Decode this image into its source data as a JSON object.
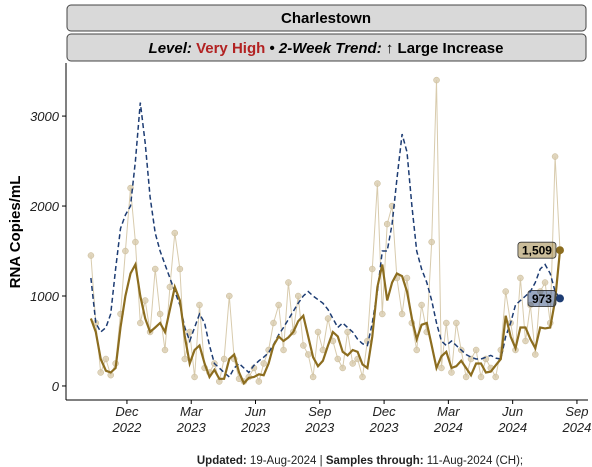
{
  "chart_data": {
    "type": "line",
    "title": "Charlestown",
    "subtitle": {
      "level_label": "Level:",
      "level": "Very High",
      "level_color": "#b22222",
      "separator": "•",
      "trend_label": "2-Week Trend:",
      "trend": "↑ Large Increase"
    },
    "ylabel": "RNA Copies/mL",
    "footer": {
      "updated_label": "Updated:",
      "updated": "19-Aug-2024",
      "divider": "|",
      "samples_label": "Samples through:",
      "samples": "11-Aug-2024 (CH);"
    },
    "xlim": [
      2022.68,
      2024.71
    ],
    "ylim": [
      -156,
      3590
    ],
    "xticks": [
      {
        "value": 2022.917,
        "label": "Dec\n2022"
      },
      {
        "value": 2023.167,
        "label": "Mar\n2023"
      },
      {
        "value": 2023.417,
        "label": "Jun\n2023"
      },
      {
        "value": 2023.667,
        "label": "Sep\n2023"
      },
      {
        "value": 2023.917,
        "label": "Dec\n2023"
      },
      {
        "value": 2024.167,
        "label": "Mar\n2024"
      },
      {
        "value": 2024.417,
        "label": "Jun\n2024"
      },
      {
        "value": 2024.667,
        "label": "Sep\n2024"
      }
    ],
    "yticks": [
      0,
      1000,
      2000,
      3000
    ],
    "grid": false,
    "x": [
      2022.777,
      2022.796,
      2022.815,
      2022.835,
      2022.854,
      2022.873,
      2022.892,
      2022.911,
      2022.931,
      2022.95,
      2022.969,
      2022.988,
      2023.007,
      2023.027,
      2023.046,
      2023.065,
      2023.084,
      2023.103,
      2023.123,
      2023.142,
      2023.161,
      2023.18,
      2023.199,
      2023.219,
      2023.238,
      2023.257,
      2023.276,
      2023.295,
      2023.315,
      2023.334,
      2023.353,
      2023.372,
      2023.391,
      2023.411,
      2023.43,
      2023.449,
      2023.468,
      2023.487,
      2023.507,
      2023.526,
      2023.545,
      2023.564,
      2023.583,
      2023.603,
      2023.622,
      2023.641,
      2023.66,
      2023.679,
      2023.699,
      2023.718,
      2023.737,
      2023.756,
      2023.775,
      2023.795,
      2023.814,
      2023.833,
      2023.852,
      2023.871,
      2023.891,
      2023.91,
      2023.929,
      2023.948,
      2023.967,
      2023.987,
      2024.006,
      2024.025,
      2024.044,
      2024.063,
      2024.083,
      2024.102,
      2024.121,
      2024.14,
      2024.159,
      2024.179,
      2024.198,
      2024.217,
      2024.236,
      2024.255,
      2024.275,
      2024.294,
      2024.313,
      2024.332,
      2024.351,
      2024.371,
      2024.39,
      2024.409,
      2024.428,
      2024.447,
      2024.467,
      2024.486,
      2024.505,
      2024.524,
      2024.543,
      2024.563,
      2024.582,
      2024.601
    ],
    "series": [
      {
        "style": "points",
        "color": "#d8cbad",
        "values": [
          1450,
          700,
          150,
          300,
          120,
          250,
          800,
          1500,
          2200,
          1600,
          700,
          950,
          600,
          1300,
          800,
          400,
          1100,
          1700,
          1300,
          300,
          600,
          100,
          900,
          200,
          150,
          250,
          50,
          300,
          1000,
          300,
          80,
          50,
          100,
          200,
          50,
          250,
          400,
          700,
          900,
          400,
          1150,
          600,
          1000,
          450,
          350,
          100,
          600,
          400,
          750,
          500,
          300,
          200,
          600,
          250,
          300,
          100,
          500,
          1300,
          2250,
          800,
          1800,
          2000,
          1200,
          800,
          1200,
          700,
          400,
          900,
          600,
          1600,
          3400,
          200,
          700,
          150,
          700,
          400,
          100,
          300,
          400,
          100,
          300,
          200,
          100,
          400,
          1050,
          700,
          400,
          1200,
          500,
          900,
          350,
          1050,
          1150,
          700,
          2550,
          1509
        ]
      },
      {
        "style": "dashed",
        "color": "#1d3c73",
        "values": [
          1200,
          700,
          600,
          650,
          800,
          1300,
          1750,
          1900,
          2000,
          2500,
          3150,
          2700,
          2100,
          1700,
          1500,
          1350,
          1200,
          1050,
          900,
          650,
          500,
          650,
          800,
          700,
          450,
          250,
          200,
          150,
          100,
          200,
          250,
          200,
          150,
          230,
          280,
          320,
          370,
          460,
          570,
          650,
          740,
          830,
          920,
          1000,
          1050,
          1000,
          960,
          920,
          850,
          750,
          650,
          700,
          650,
          600,
          520,
          470,
          450,
          700,
          1050,
          1500,
          1500,
          1800,
          2300,
          2800,
          2600,
          2000,
          1500,
          1300,
          1150,
          950,
          700,
          500,
          450,
          500,
          450,
          400,
          350,
          320,
          300,
          300,
          320,
          340,
          310,
          300,
          550,
          700,
          900,
          950,
          1000,
          1050,
          1150,
          1300,
          1350,
          1250,
          1050,
          973
        ],
        "value_labels": [
          null,
          null,
          null,
          null,
          null,
          null,
          null,
          null,
          null,
          null,
          null,
          null,
          null,
          null,
          null,
          null,
          null,
          null,
          null,
          null,
          null,
          null,
          null,
          null,
          null,
          null,
          null,
          null,
          null,
          null,
          null,
          null,
          null,
          null,
          null,
          null,
          null,
          null,
          null,
          null,
          null,
          null,
          null,
          null,
          null,
          null,
          null,
          null,
          null,
          null,
          null,
          null,
          null,
          null,
          null,
          null,
          null,
          null,
          null,
          null,
          null,
          null,
          null,
          null,
          null,
          null,
          null,
          null,
          null,
          null,
          null,
          null,
          null,
          null,
          null,
          null,
          null,
          null,
          null,
          null,
          null,
          null,
          null,
          null,
          null,
          null,
          null,
          null,
          null,
          null,
          null,
          null,
          null,
          null,
          null,
          "973"
        ]
      },
      {
        "style": "solid",
        "color": "#8c6d1f",
        "values": [
          750,
          600,
          300,
          170,
          150,
          200,
          650,
          1000,
          1250,
          1350,
          1000,
          750,
          600,
          650,
          700,
          600,
          850,
          1100,
          950,
          550,
          250,
          400,
          450,
          250,
          100,
          180,
          80,
          80,
          300,
          350,
          150,
          30,
          90,
          100,
          130,
          120,
          250,
          450,
          550,
          500,
          540,
          600,
          720,
          780,
          550,
          320,
          220,
          280,
          450,
          600,
          550,
          380,
          340,
          400,
          380,
          240,
          200,
          550,
          1100,
          1350,
          950,
          1150,
          1250,
          1220,
          1050,
          750,
          520,
          680,
          700,
          450,
          200,
          330,
          380,
          200,
          220,
          280,
          200,
          120,
          250,
          250,
          150,
          160,
          230,
          300,
          780,
          550,
          420,
          650,
          650,
          520,
          420,
          650,
          640,
          650,
          950,
          1509
        ],
        "value_labels": [
          null,
          null,
          null,
          null,
          null,
          null,
          null,
          null,
          null,
          null,
          null,
          null,
          null,
          null,
          null,
          null,
          null,
          null,
          null,
          null,
          null,
          null,
          null,
          null,
          null,
          null,
          null,
          null,
          null,
          null,
          null,
          null,
          null,
          null,
          null,
          null,
          null,
          null,
          null,
          null,
          null,
          null,
          null,
          null,
          null,
          null,
          null,
          null,
          null,
          null,
          null,
          null,
          null,
          null,
          null,
          null,
          null,
          null,
          null,
          null,
          null,
          null,
          null,
          null,
          null,
          null,
          null,
          null,
          null,
          null,
          null,
          null,
          null,
          null,
          null,
          null,
          null,
          null,
          null,
          null,
          null,
          null,
          null,
          null,
          null,
          null,
          null,
          null,
          null,
          null,
          null,
          null,
          null,
          null,
          null,
          "1,509"
        ]
      }
    ]
  }
}
